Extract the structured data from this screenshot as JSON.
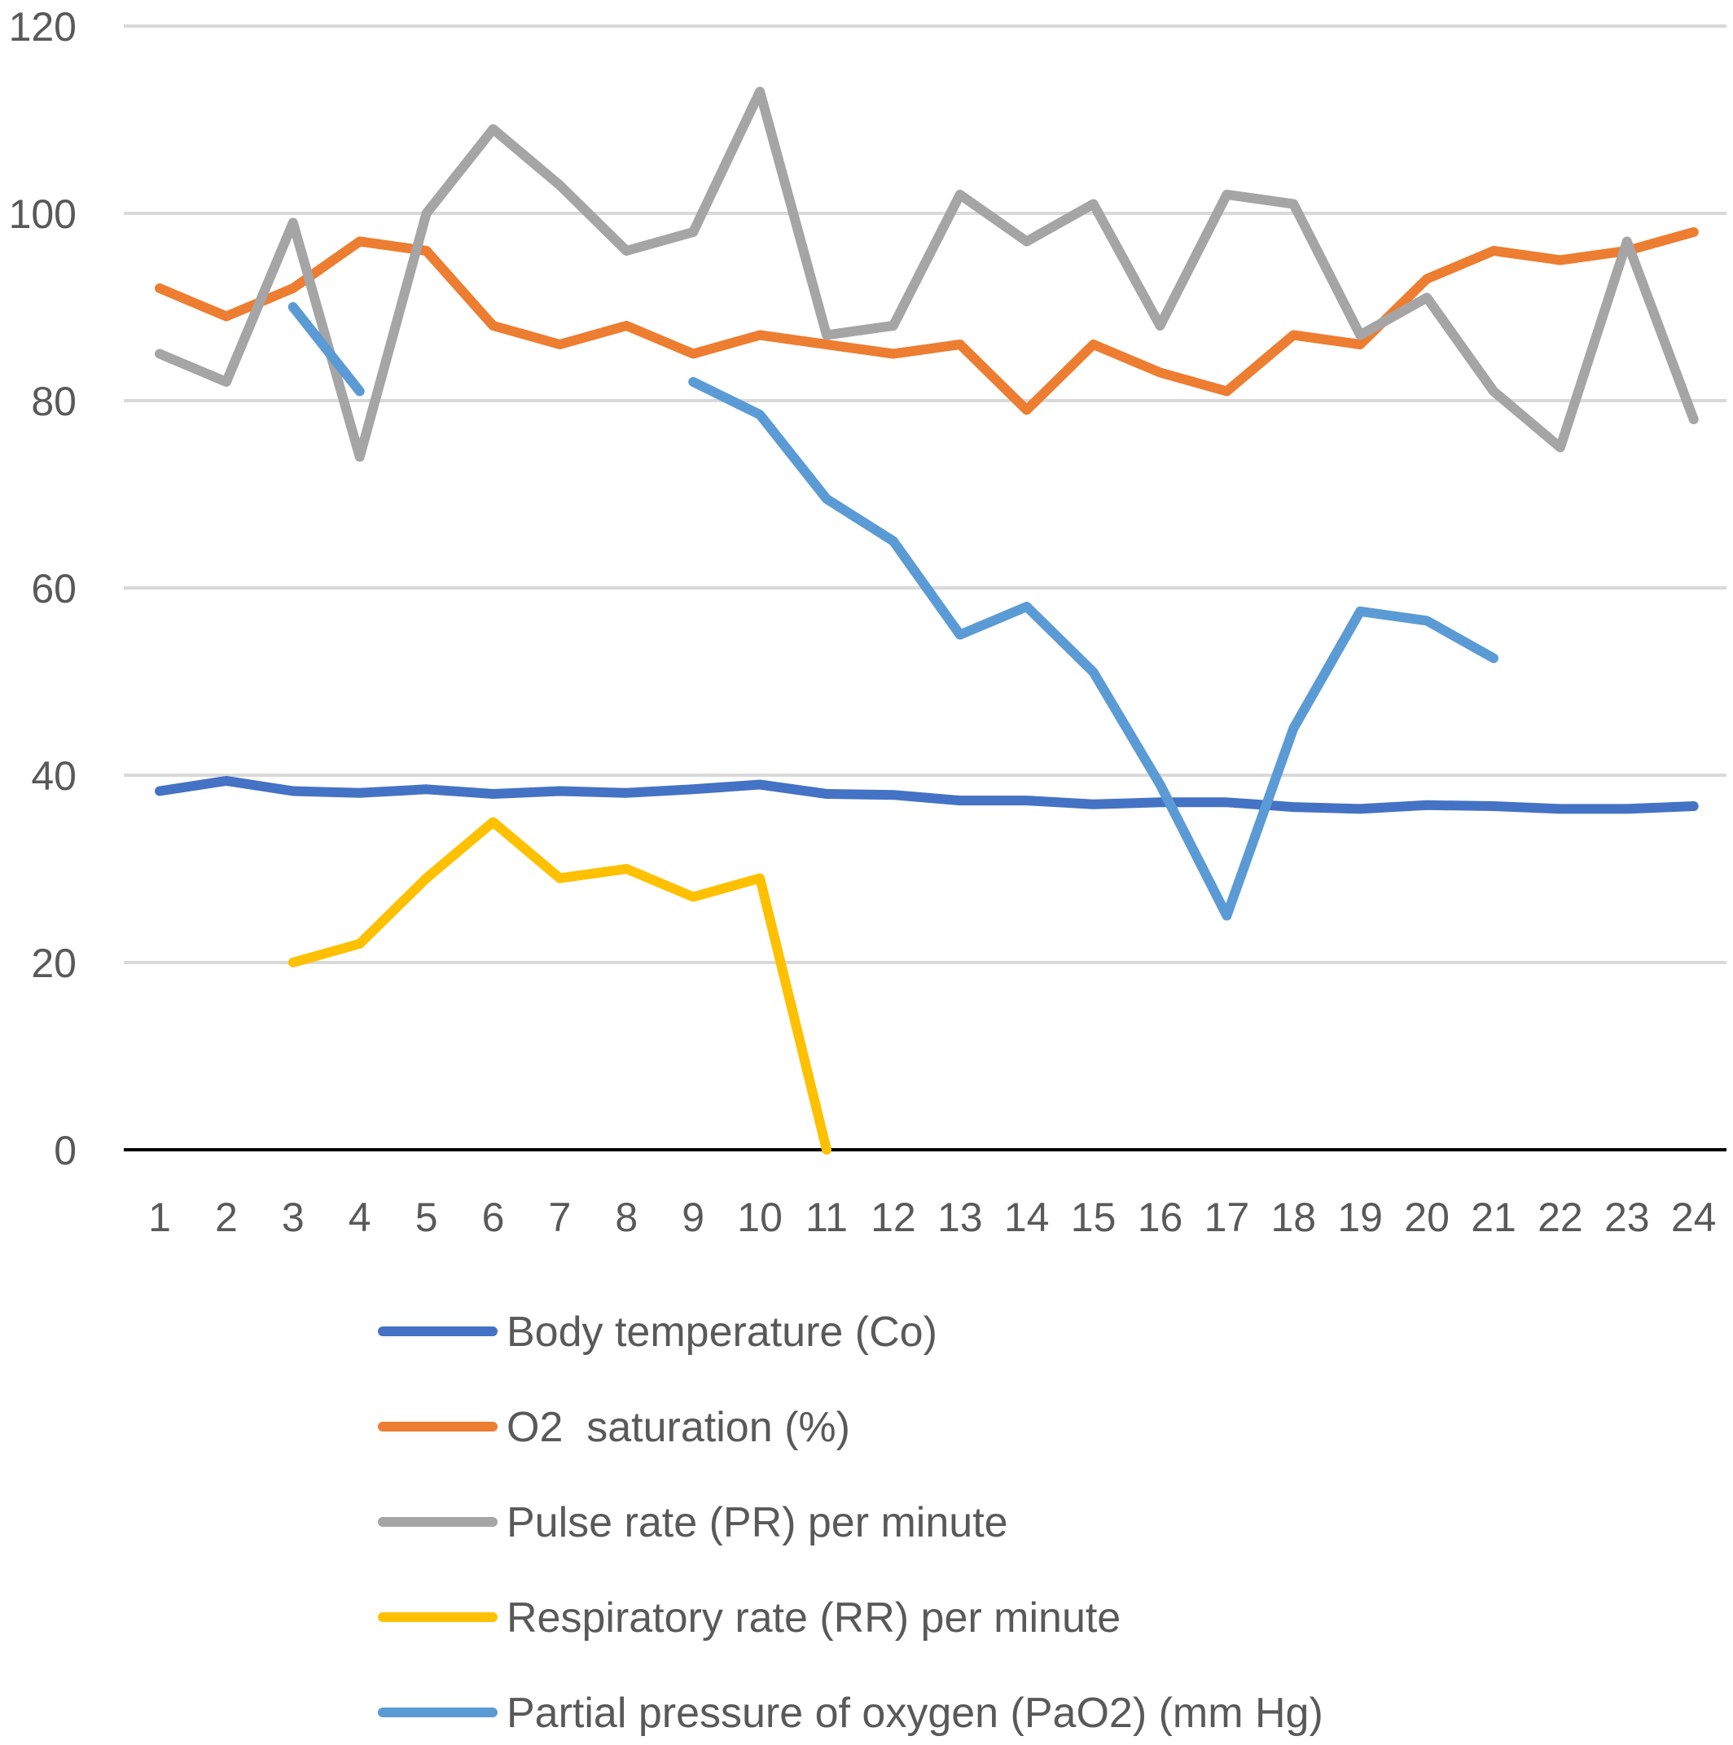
{
  "chart_data": {
    "type": "line",
    "title": "",
    "xlabel": "",
    "ylabel": "",
    "ylim": [
      0,
      120
    ],
    "yticks": [
      0,
      20,
      40,
      60,
      80,
      100,
      120
    ],
    "grid": true,
    "legend_position": "bottom",
    "categories": [
      "1",
      "2",
      "3",
      "4",
      "5",
      "6",
      "7",
      "8",
      "9",
      "10",
      "11",
      "12",
      "13",
      "14",
      "15",
      "16",
      "17",
      "18",
      "19",
      "20",
      "21",
      "22",
      "23",
      "24"
    ],
    "series": [
      {
        "name": "Body temperature (Co)",
        "color": "#4472c4",
        "values": [
          38.3,
          39.4,
          38.3,
          38.1,
          38.5,
          38,
          38.3,
          38.1,
          38.5,
          39,
          38,
          37.9,
          37.3,
          37.3,
          36.9,
          37.1,
          37.1,
          36.6,
          36.4,
          36.8,
          36.7,
          36.4,
          36.4,
          36.7
        ]
      },
      {
        "name": "O2  saturation (%)",
        "color": "#ed7d31",
        "values": [
          92,
          89,
          92,
          97,
          96,
          88,
          86,
          88,
          85,
          87,
          86,
          85,
          86,
          79,
          86,
          83,
          81,
          87,
          86,
          93,
          96,
          95,
          96,
          98
        ]
      },
      {
        "name": "Pulse rate (PR) per minute",
        "color": "#a5a5a5",
        "values": [
          85,
          82,
          99,
          74,
          100,
          109,
          103,
          96,
          98,
          113,
          87,
          88,
          102,
          97,
          101,
          88,
          102,
          101,
          87,
          91,
          81,
          75,
          97,
          78
        ]
      },
      {
        "name": "Respiratory rate (RR) per minute",
        "color": "#ffc000",
        "values": [
          null,
          null,
          20,
          22,
          29,
          35,
          29,
          30,
          27,
          29,
          0,
          null,
          null,
          null,
          null,
          null,
          null,
          null,
          null,
          null,
          null,
          null,
          null,
          null
        ]
      },
      {
        "name": "Partial pressure of oxygen (PaO2) (mm Hg)",
        "color": "#5b9bd5",
        "values": [
          null,
          null,
          90,
          81,
          null,
          null,
          null,
          null,
          82,
          78.5,
          69.5,
          65,
          55,
          58,
          51,
          39,
          25,
          45,
          57.5,
          56.5,
          52.5,
          null,
          null,
          null
        ]
      }
    ]
  }
}
